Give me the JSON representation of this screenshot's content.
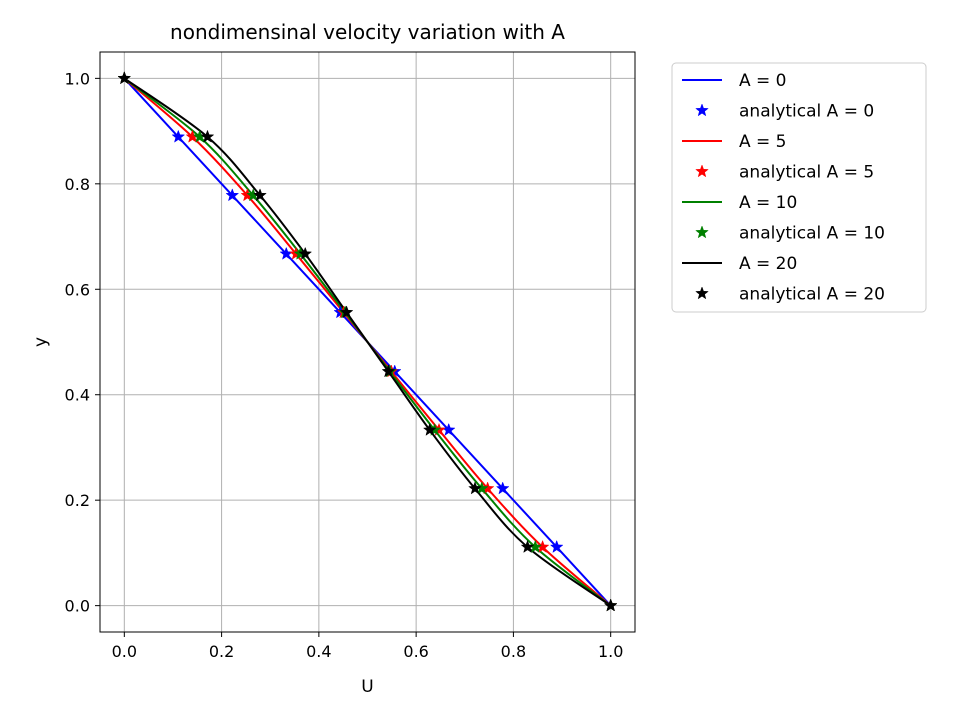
{
  "chart_data": {
    "type": "line",
    "title": "nondimensinal velocity variation with A",
    "xlabel": "U",
    "ylabel": "y",
    "xlim": [
      -0.05,
      1.05
    ],
    "ylim": [
      -0.05,
      1.05
    ],
    "xticks": [
      0.0,
      0.2,
      0.4,
      0.6,
      0.8,
      1.0
    ],
    "yticks": [
      0.0,
      0.2,
      0.4,
      0.6,
      0.8,
      1.0
    ],
    "xtick_labels": [
      "0.0",
      "0.2",
      "0.4",
      "0.6",
      "0.8",
      "1.0"
    ],
    "ytick_labels": [
      "0.0",
      "0.2",
      "0.4",
      "0.6",
      "0.8",
      "1.0"
    ],
    "grid": true,
    "legend_placement": "outside-right",
    "y_points": [
      1.0,
      0.889,
      0.778,
      0.667,
      0.556,
      0.444,
      0.333,
      0.222,
      0.111,
      0.0
    ],
    "series": [
      {
        "A": 0,
        "line_label": "A = 0",
        "marker_label": "analytical A = 0",
        "color": "#0000ff",
        "U": [
          0.0,
          0.111,
          0.222,
          0.333,
          0.444,
          0.556,
          0.667,
          0.778,
          0.889,
          1.0
        ]
      },
      {
        "A": 5,
        "line_label": "A = 5",
        "marker_label": "analytical A = 5",
        "color": "#ff0000",
        "U": [
          0.0,
          0.14,
          0.253,
          0.353,
          0.451,
          0.549,
          0.647,
          0.747,
          0.86,
          1.0
        ]
      },
      {
        "A": 10,
        "line_label": "A = 10",
        "marker_label": "analytical A = 10",
        "color": "#008000",
        "U": [
          0.0,
          0.155,
          0.265,
          0.362,
          0.454,
          0.546,
          0.638,
          0.735,
          0.845,
          1.0
        ]
      },
      {
        "A": 20,
        "line_label": "A = 20",
        "marker_label": "analytical A = 20",
        "color": "#000000",
        "U": [
          0.0,
          0.171,
          0.279,
          0.372,
          0.457,
          0.543,
          0.628,
          0.721,
          0.829,
          1.0
        ]
      }
    ]
  }
}
